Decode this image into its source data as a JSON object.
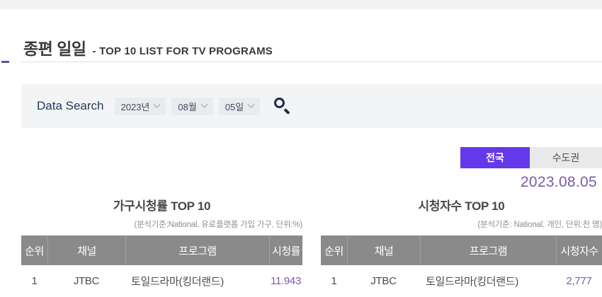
{
  "page": {
    "title_ko": "종편 일일",
    "title_en": "- TOP 10 LIST FOR TV PROGRAMS"
  },
  "search": {
    "label": "Data Search",
    "year": "2023년",
    "month": "08월",
    "day": "05일",
    "search_icon": "magnifier-icon"
  },
  "tabs": {
    "nationwide": "전국",
    "metropolitan": "수도권",
    "active": "전국"
  },
  "date": "2023.08.05",
  "colors": {
    "accent_purple": "#6538e9",
    "value_purple": "#7a5ba8",
    "header_gray": "#8a8a8a",
    "searchbar_gray": "#f3f4f6"
  },
  "tables": [
    {
      "title": "가구시청률 TOP 10",
      "subtitle": "(분석기준:National, 유료플랫폼 가입 가구, 단위:%)",
      "headers": [
        "순위",
        "채널",
        "프로그램",
        "시청률"
      ],
      "rows": [
        {
          "rank": "1",
          "channel": "JTBC",
          "program": "토일드라마(킹더랜드)",
          "value": "11.943"
        }
      ]
    },
    {
      "title": "시청자수 TOP 10",
      "subtitle": "(분석기준: National, 개인, 단위:천 명)",
      "headers": [
        "순위",
        "채널",
        "프로그램",
        "시청자수"
      ],
      "rows": [
        {
          "rank": "1",
          "channel": "JTBC",
          "program": "토일드라마(킹더랜드)",
          "value": "2,777"
        }
      ]
    }
  ]
}
